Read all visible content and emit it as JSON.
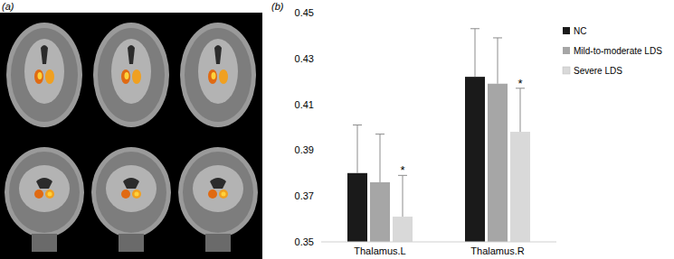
{
  "panel_labels": [
    "(a)",
    "(b)"
  ],
  "chart_data": {
    "type": "bar",
    "categories": [
      "Thalamus.L",
      "Thalamus.R"
    ],
    "series": [
      {
        "name": "NC",
        "color": "#1a1a1a",
        "values": [
          0.38,
          0.422
        ],
        "errors": [
          0.021,
          0.021
        ]
      },
      {
        "name": "Mild-to-moderate LDS",
        "color": "#a6a6a6",
        "values": [
          0.376,
          0.419
        ],
        "errors": [
          0.021,
          0.02
        ]
      },
      {
        "name": "Severe LDS",
        "color": "#d9d9d9",
        "values": [
          0.361,
          0.398
        ],
        "errors": [
          0.018,
          0.019
        ]
      }
    ],
    "ylim": [
      0.35,
      0.45
    ],
    "yticks": [
      0.35,
      0.37,
      0.39,
      0.41,
      0.43,
      0.45
    ],
    "grid": false,
    "legend": "right",
    "annotations": [
      {
        "text": "*",
        "category": "Thalamus.L",
        "series": "Severe LDS"
      },
      {
        "text": "*",
        "category": "Thalamus.R",
        "series": "Severe LDS"
      }
    ]
  }
}
